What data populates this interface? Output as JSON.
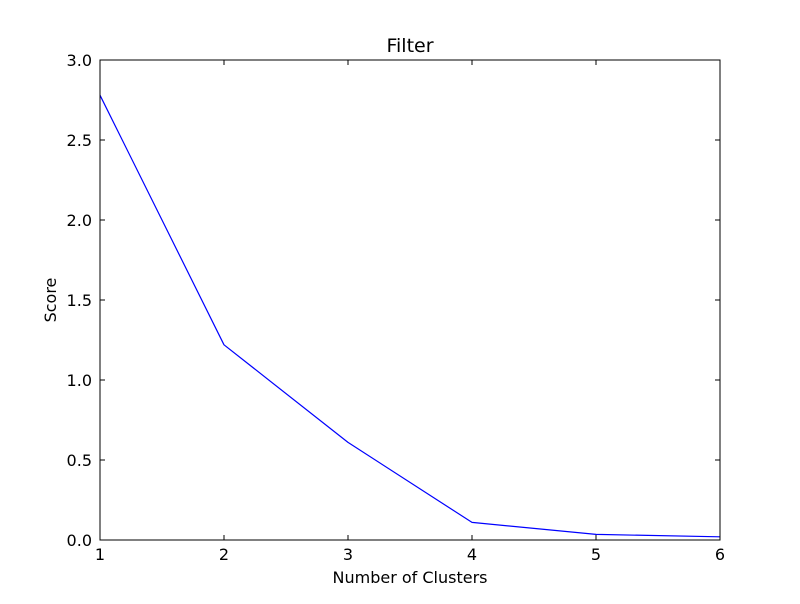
{
  "chart_data": {
    "type": "line",
    "title": "Filter",
    "xlabel": "Number of Clusters",
    "ylabel": "Score",
    "xlim": [
      1,
      6
    ],
    "ylim": [
      0,
      3
    ],
    "x_ticks": [
      1,
      2,
      3,
      4,
      5,
      6
    ],
    "x_tick_labels": [
      "1",
      "2",
      "3",
      "4",
      "5",
      "6"
    ],
    "y_ticks": [
      0,
      0.5,
      1,
      1.5,
      2,
      2.5,
      3
    ],
    "y_tick_labels": [
      "0.0",
      "0.5",
      "1.0",
      "1.5",
      "2.0",
      "2.5",
      "3.0"
    ],
    "grid": false,
    "legend": null,
    "series": [
      {
        "color": "#0000ff",
        "x": [
          1,
          2,
          3,
          4,
          5,
          6
        ],
        "y": [
          2.78,
          1.22,
          0.61,
          0.11,
          0.035,
          0.02
        ]
      }
    ]
  }
}
